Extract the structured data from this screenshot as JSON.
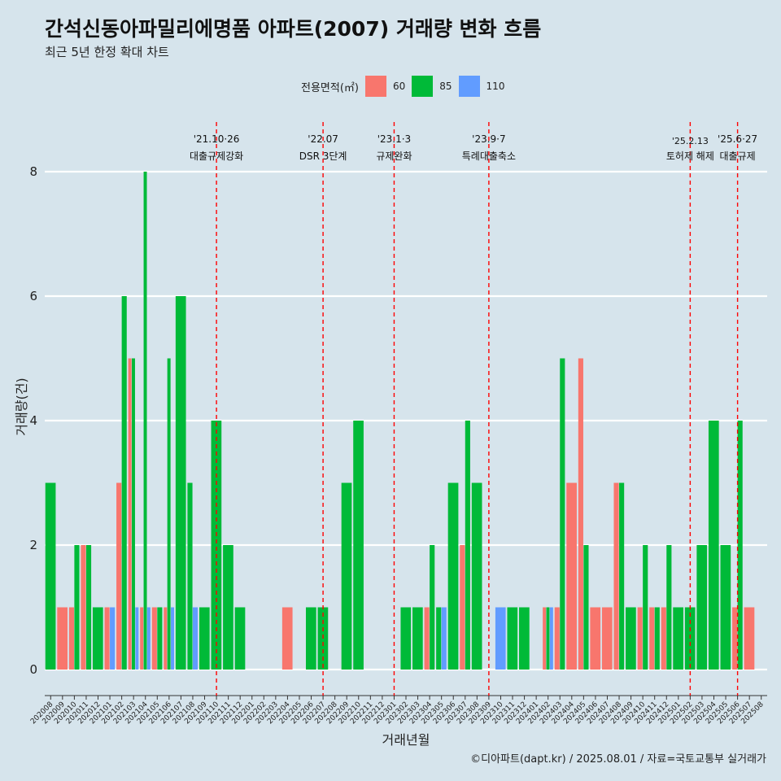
{
  "title": "간석신동아파밀리에명품 아파트(2007) 거래량 변화 흐름",
  "subtitle": "최근 5년 한정 확대 차트",
  "caption": "©디아파트(dapt.kr) / 2025.08.01 / 자료=국토교통부 실거래가",
  "legend": {
    "title": "전용면적(㎡)",
    "items": [
      {
        "label": "60",
        "color": "#F8766D"
      },
      {
        "label": "85",
        "color": "#00BA38"
      },
      {
        "label": "110",
        "color": "#619CFF"
      }
    ]
  },
  "chart_data": {
    "type": "bar",
    "xlabel": "거래년월",
    "ylabel": "거래량(건)",
    "ylim": [
      0,
      8
    ],
    "yticks": [
      0,
      2,
      4,
      6,
      8
    ],
    "grid": true,
    "legend_position": "top",
    "categories": [
      "202008",
      "202009",
      "202010",
      "202011",
      "202012",
      "202101",
      "202102",
      "202103",
      "202104",
      "202105",
      "202106",
      "202107",
      "202108",
      "202109",
      "202110",
      "202111",
      "202112",
      "202201",
      "202202",
      "202203",
      "202204",
      "202205",
      "202206",
      "202207",
      "202208",
      "202209",
      "202210",
      "202211",
      "202212",
      "202301",
      "202302",
      "202303",
      "202304",
      "202305",
      "202306",
      "202307",
      "202308",
      "202309",
      "202310",
      "202311",
      "202312",
      "202401",
      "202402",
      "202403",
      "202404",
      "202405",
      "202406",
      "202407",
      "202408",
      "202409",
      "202410",
      "202411",
      "202412",
      "202501",
      "202502",
      "202503",
      "202504",
      "202505",
      "202506",
      "202507",
      "202508"
    ],
    "series": [
      {
        "name": "60",
        "color": "#F8766D",
        "values": [
          0,
          1,
          1,
          2,
          0,
          1,
          3,
          5,
          1,
          1,
          1,
          0,
          0,
          0,
          0,
          0,
          0,
          0,
          0,
          0,
          1,
          0,
          0,
          0,
          0,
          0,
          0,
          0,
          0,
          0,
          0,
          0,
          1,
          0,
          0,
          2,
          0,
          0,
          0,
          0,
          0,
          0,
          1,
          1,
          3,
          5,
          1,
          1,
          3,
          0,
          1,
          1,
          1,
          0,
          0,
          0,
          0,
          0,
          1,
          1,
          0
        ]
      },
      {
        "name": "85",
        "color": "#00BA38",
        "values": [
          3,
          0,
          2,
          2,
          1,
          0,
          6,
          5,
          8,
          1,
          5,
          6,
          3,
          1,
          4,
          2,
          1,
          0,
          0,
          0,
          0,
          0,
          1,
          1,
          0,
          3,
          4,
          0,
          0,
          0,
          1,
          1,
          2,
          1,
          3,
          4,
          3,
          0,
          0,
          1,
          1,
          0,
          1,
          5,
          0,
          2,
          0,
          0,
          3,
          1,
          2,
          1,
          2,
          1,
          1,
          2,
          4,
          2,
          4,
          0,
          0
        ]
      },
      {
        "name": "110",
        "color": "#619CFF",
        "values": [
          0,
          0,
          0,
          0,
          0,
          1,
          0,
          1,
          1,
          0,
          1,
          0,
          1,
          0,
          0,
          0,
          0,
          0,
          0,
          0,
          0,
          0,
          0,
          0,
          0,
          0,
          0,
          0,
          0,
          0,
          0,
          0,
          0,
          1,
          0,
          0,
          0,
          0,
          1,
          0,
          0,
          0,
          1,
          0,
          0,
          0,
          0,
          0,
          0,
          0,
          0,
          0,
          0,
          0,
          0,
          0,
          0,
          0,
          0,
          0,
          0
        ]
      }
    ],
    "annotations": [
      {
        "at": "202110",
        "line1": "'21.10·26",
        "line2": "대출규제강화"
      },
      {
        "at": "202207",
        "line1": "'22.07",
        "line2": "DSR 3단계"
      },
      {
        "at": "202301",
        "line1": "'23.1·3",
        "line2": "규제완화"
      },
      {
        "at": "202309",
        "line1": "'23.9·7",
        "line2": "특례대출축소"
      },
      {
        "at": "202502",
        "line1": "'25.2.13",
        "line2": "토허제 해제"
      },
      {
        "at": "202506",
        "line1": "'25.6·27",
        "line2": "대출규제"
      }
    ]
  }
}
